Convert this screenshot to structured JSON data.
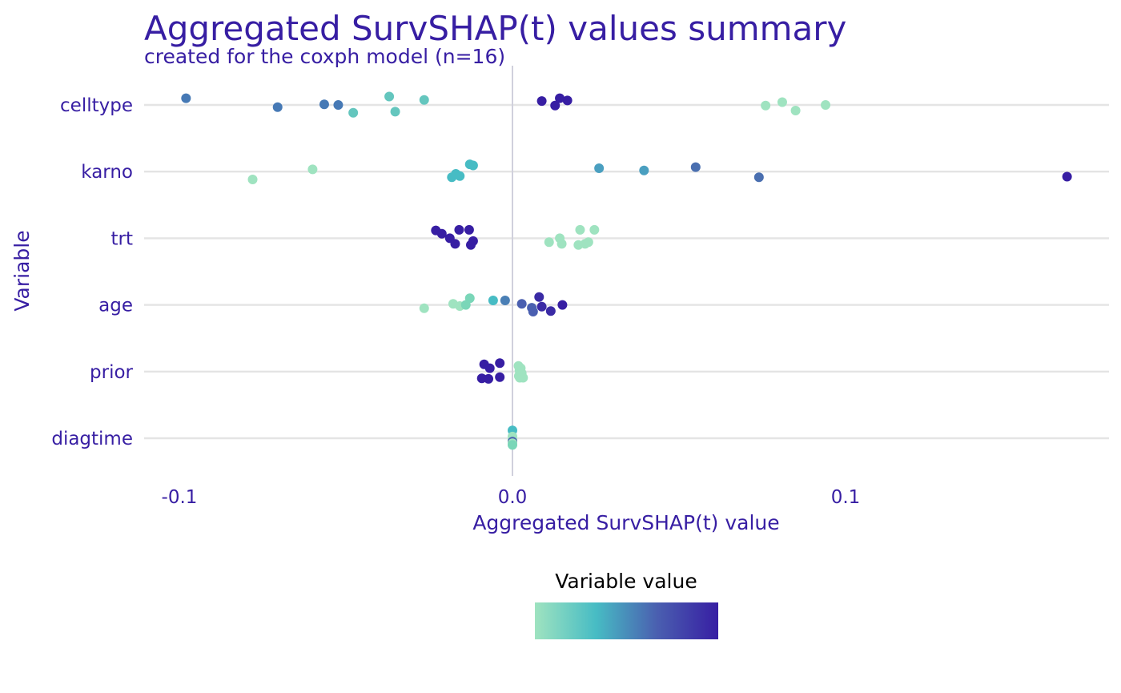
{
  "chart_data": {
    "type": "scatter",
    "title": "Aggregated SurvSHAP(t) values summary",
    "subtitle": "created for the coxph model (n=16)",
    "xlabel": "Aggregated SurvSHAP(t) value",
    "ylabel": "Variable",
    "xlim": [
      -0.105,
      0.18
    ],
    "x_ticks": [
      {
        "value": -0.1,
        "label": "-0.1"
      },
      {
        "value": 0.0,
        "label": "0.0"
      },
      {
        "value": 0.1,
        "label": "0.1"
      }
    ],
    "categories": [
      "celltype",
      "karno",
      "trt",
      "age",
      "prior",
      "diagtime"
    ],
    "grid": true,
    "zero_line": true,
    "legend": {
      "title": "Variable value",
      "placement": "bottom",
      "type": "colorbar",
      "gradient": [
        "#9fe3c0",
        "#47bcc4",
        "#4a5fb0",
        "#371ea3"
      ]
    },
    "colors": {
      "title": "#371ea3",
      "grid": "#e4e4e4",
      "zero_line": "#d0d0dc"
    },
    "points": [
      {
        "variable": "celltype",
        "x": -0.098,
        "jitter": 0.12,
        "color": "#4679b5"
      },
      {
        "variable": "celltype",
        "x": -0.0705,
        "jitter": -0.04,
        "color": "#4679b5"
      },
      {
        "variable": "celltype",
        "x": -0.0565,
        "jitter": 0.01,
        "color": "#4679b5"
      },
      {
        "variable": "celltype",
        "x": -0.0523,
        "jitter": 0.0,
        "color": "#4679b5"
      },
      {
        "variable": "celltype",
        "x": -0.0478,
        "jitter": -0.14,
        "color": "#64c6be"
      },
      {
        "variable": "celltype",
        "x": -0.037,
        "jitter": 0.15,
        "color": "#64c6be"
      },
      {
        "variable": "celltype",
        "x": -0.0352,
        "jitter": -0.12,
        "color": "#64c6be"
      },
      {
        "variable": "celltype",
        "x": -0.0265,
        "jitter": 0.09,
        "color": "#64c6be"
      },
      {
        "variable": "celltype",
        "x": 0.0088,
        "jitter": 0.07,
        "color": "#371ea3"
      },
      {
        "variable": "celltype",
        "x": 0.0128,
        "jitter": -0.01,
        "color": "#371ea3"
      },
      {
        "variable": "celltype",
        "x": 0.0142,
        "jitter": 0.12,
        "color": "#371ea3"
      },
      {
        "variable": "celltype",
        "x": 0.0165,
        "jitter": 0.08,
        "color": "#371ea3"
      },
      {
        "variable": "celltype",
        "x": 0.076,
        "jitter": -0.01,
        "color": "#9fe3c0"
      },
      {
        "variable": "celltype",
        "x": 0.081,
        "jitter": 0.05,
        "color": "#9fe3c0"
      },
      {
        "variable": "celltype",
        "x": 0.085,
        "jitter": -0.1,
        "color": "#9fe3c0"
      },
      {
        "variable": "celltype",
        "x": 0.094,
        "jitter": 0.0,
        "color": "#9fe3c0"
      },
      {
        "variable": "karno",
        "x": -0.078,
        "jitter": -0.14,
        "color": "#9fe3c0"
      },
      {
        "variable": "karno",
        "x": -0.06,
        "jitter": 0.04,
        "color": "#9fe3c0"
      },
      {
        "variable": "karno",
        "x": -0.0182,
        "jitter": -0.1,
        "color": "#47bcc4"
      },
      {
        "variable": "karno",
        "x": -0.017,
        "jitter": -0.04,
        "color": "#47bcc4"
      },
      {
        "variable": "karno",
        "x": -0.0158,
        "jitter": -0.08,
        "color": "#47bcc4"
      },
      {
        "variable": "karno",
        "x": -0.0128,
        "jitter": 0.13,
        "color": "#47bcc4"
      },
      {
        "variable": "karno",
        "x": -0.0118,
        "jitter": 0.11,
        "color": "#47bcc4"
      },
      {
        "variable": "karno",
        "x": 0.026,
        "jitter": 0.06,
        "color": "#4a9fc0"
      },
      {
        "variable": "karno",
        "x": 0.0395,
        "jitter": 0.02,
        "color": "#4a9fc0"
      },
      {
        "variable": "karno",
        "x": 0.055,
        "jitter": 0.08,
        "color": "#4a6fb0"
      },
      {
        "variable": "karno",
        "x": 0.074,
        "jitter": -0.1,
        "color": "#4a6fb0"
      },
      {
        "variable": "karno",
        "x": 0.1665,
        "jitter": -0.09,
        "color": "#371ea3"
      },
      {
        "variable": "trt",
        "x": -0.023,
        "jitter": 0.14,
        "color": "#371ea3"
      },
      {
        "variable": "trt",
        "x": -0.0212,
        "jitter": 0.08,
        "color": "#371ea3"
      },
      {
        "variable": "trt",
        "x": -0.0188,
        "jitter": 0.0,
        "color": "#371ea3"
      },
      {
        "variable": "trt",
        "x": -0.0172,
        "jitter": -0.1,
        "color": "#371ea3"
      },
      {
        "variable": "trt",
        "x": -0.016,
        "jitter": 0.15,
        "color": "#371ea3"
      },
      {
        "variable": "trt",
        "x": -0.013,
        "jitter": 0.15,
        "color": "#371ea3"
      },
      {
        "variable": "trt",
        "x": -0.0118,
        "jitter": -0.05,
        "color": "#371ea3"
      },
      {
        "variable": "trt",
        "x": -0.0125,
        "jitter": -0.12,
        "color": "#371ea3"
      },
      {
        "variable": "trt",
        "x": 0.011,
        "jitter": -0.07,
        "color": "#9fe3c0"
      },
      {
        "variable": "trt",
        "x": 0.0142,
        "jitter": 0.0,
        "color": "#9fe3c0"
      },
      {
        "variable": "trt",
        "x": 0.0148,
        "jitter": -0.1,
        "color": "#9fe3c0"
      },
      {
        "variable": "trt",
        "x": 0.0198,
        "jitter": -0.12,
        "color": "#9fe3c0"
      },
      {
        "variable": "trt",
        "x": 0.0203,
        "jitter": 0.15,
        "color": "#9fe3c0"
      },
      {
        "variable": "trt",
        "x": 0.0218,
        "jitter": -0.1,
        "color": "#9fe3c0"
      },
      {
        "variable": "trt",
        "x": 0.0228,
        "jitter": -0.07,
        "color": "#9fe3c0"
      },
      {
        "variable": "trt",
        "x": 0.0246,
        "jitter": 0.15,
        "color": "#9fe3c0"
      },
      {
        "variable": "age",
        "x": -0.0265,
        "jitter": -0.06,
        "color": "#9fe3c0"
      },
      {
        "variable": "age",
        "x": -0.0178,
        "jitter": 0.02,
        "color": "#9fe3c0"
      },
      {
        "variable": "age",
        "x": -0.0158,
        "jitter": -0.02,
        "color": "#9fe3c0"
      },
      {
        "variable": "age",
        "x": -0.014,
        "jitter": 0.0,
        "color": "#7ad6b8"
      },
      {
        "variable": "age",
        "x": -0.0128,
        "jitter": 0.12,
        "color": "#7ad6b8"
      },
      {
        "variable": "age",
        "x": -0.0058,
        "jitter": 0.08,
        "color": "#47bcc4"
      },
      {
        "variable": "age",
        "x": -0.0022,
        "jitter": 0.08,
        "color": "#4a7fb5"
      },
      {
        "variable": "age",
        "x": 0.0028,
        "jitter": 0.02,
        "color": "#4a5fb0"
      },
      {
        "variable": "age",
        "x": 0.0058,
        "jitter": -0.05,
        "color": "#4a5fb0"
      },
      {
        "variable": "age",
        "x": 0.0062,
        "jitter": -0.12,
        "color": "#4a5fb0"
      },
      {
        "variable": "age",
        "x": 0.008,
        "jitter": 0.14,
        "color": "#3a2aa5"
      },
      {
        "variable": "age",
        "x": 0.0088,
        "jitter": -0.03,
        "color": "#3a2aa5"
      },
      {
        "variable": "age",
        "x": 0.0115,
        "jitter": -0.11,
        "color": "#3a2aa5"
      },
      {
        "variable": "age",
        "x": 0.015,
        "jitter": 0.0,
        "color": "#371ea3"
      },
      {
        "variable": "prior",
        "x": -0.0085,
        "jitter": 0.13,
        "color": "#371ea3"
      },
      {
        "variable": "prior",
        "x": -0.0068,
        "jitter": 0.06,
        "color": "#371ea3"
      },
      {
        "variable": "prior",
        "x": -0.0038,
        "jitter": 0.15,
        "color": "#371ea3"
      },
      {
        "variable": "prior",
        "x": -0.0092,
        "jitter": -0.12,
        "color": "#371ea3"
      },
      {
        "variable": "prior",
        "x": -0.0072,
        "jitter": -0.13,
        "color": "#371ea3"
      },
      {
        "variable": "prior",
        "x": -0.0038,
        "jitter": -0.1,
        "color": "#371ea3"
      },
      {
        "variable": "prior",
        "x": 0.0018,
        "jitter": 0.1,
        "color": "#9fe3c0"
      },
      {
        "variable": "prior",
        "x": 0.0025,
        "jitter": 0.06,
        "color": "#9fe3c0"
      },
      {
        "variable": "prior",
        "x": 0.0021,
        "jitter": 0.02,
        "color": "#9fe3c0"
      },
      {
        "variable": "prior",
        "x": 0.0028,
        "jitter": -0.03,
        "color": "#9fe3c0"
      },
      {
        "variable": "prior",
        "x": 0.0019,
        "jitter": -0.08,
        "color": "#9fe3c0"
      },
      {
        "variable": "prior",
        "x": 0.0032,
        "jitter": -0.11,
        "color": "#9fe3c0"
      },
      {
        "variable": "prior",
        "x": 0.0022,
        "jitter": -0.11,
        "color": "#9fe3c0"
      },
      {
        "variable": "diagtime",
        "x": 0.0,
        "jitter": 0.14,
        "color": "#47bcc4"
      },
      {
        "variable": "diagtime",
        "x": 0.0,
        "jitter": 0.03,
        "color": "#9fe3c0"
      },
      {
        "variable": "diagtime",
        "x": 0.0,
        "jitter": -0.02,
        "color": "#9fe3c0"
      },
      {
        "variable": "diagtime",
        "x": 0.0,
        "jitter": -0.06,
        "color": "#4a5fb0"
      },
      {
        "variable": "diagtime",
        "x": 0.0,
        "jitter": -0.09,
        "color": "#9fe3c0"
      },
      {
        "variable": "diagtime",
        "x": 0.0,
        "jitter": -0.12,
        "color": "#7ad6b8"
      }
    ]
  }
}
